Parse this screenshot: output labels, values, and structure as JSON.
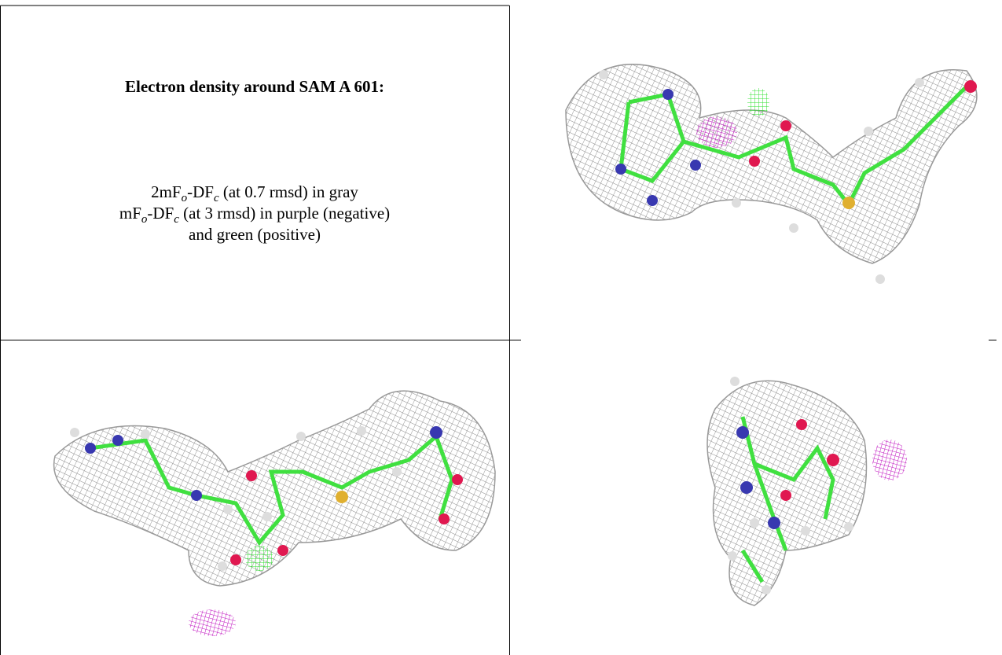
{
  "caption": {
    "title": "Electron density around SAM A 601:",
    "line1": {
      "a": "2mF",
      "s1": "o",
      "b": "-DF",
      "s2": "c",
      "c": " (at 0.7 rmsd) in gray"
    },
    "line2": {
      "a": "mF",
      "s1": "o",
      "b": "-DF",
      "s2": "c",
      "c": " (at 3 rmsd) in purple (negative)"
    },
    "line3": "and green (positive)"
  }
}
